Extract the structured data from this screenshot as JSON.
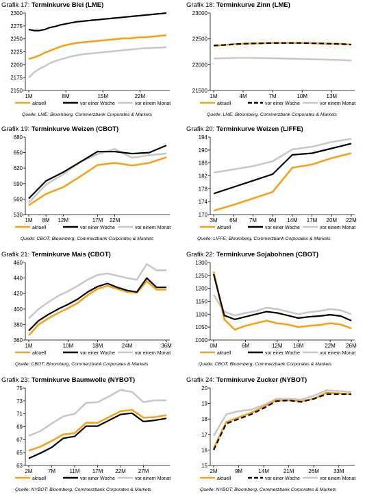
{
  "colors": {
    "aktuell": "#f5a21b",
    "woche": "#000000",
    "monat": "#c8c8c8"
  },
  "charts": [
    {
      "title_prefix": "Grafik 17:",
      "title": "Terminkurve Blei (LME)",
      "source": "Quelle: LME; Bloomberg, Commerzbank Corporates & Markets",
      "chart_data": {
        "type": "line",
        "yticks": [
          "2150",
          "2175",
          "2200",
          "2225",
          "2250",
          "2275",
          "2300"
        ],
        "ylim": [
          2150,
          2300
        ],
        "xticks": [
          "1M",
          "8M",
          "15M",
          "22M"
        ],
        "x_n": 27,
        "xtick_idx": [
          0,
          7,
          14,
          21
        ],
        "series": [
          {
            "name": "aktuell",
            "dash": false,
            "values": [
              2211,
              2214,
              2218,
              2223,
              2227,
              2231,
              2235,
              2238,
              2240,
              2242,
              2243,
              2244,
              2245,
              2246,
              2247,
              2248,
              2249,
              2250,
              2251,
              2251,
              2252,
              2253,
              2253,
              2254,
              2255,
              2256,
              2257
            ]
          },
          {
            "name": "vor einer Woche",
            "dash": false,
            "values": [
              2268,
              2266,
              2266,
              2268,
              2272,
              2274,
              2277,
              2279,
              2281,
              2283,
              2284,
              2285,
              2286,
              2287,
              2288,
              2289,
              2290,
              2291,
              2292,
              2293,
              2294,
              2295,
              2296,
              2297,
              2298,
              2299,
              2300
            ]
          },
          {
            "name": "vor einem Monat",
            "dash": false,
            "values": [
              2175,
              2185,
              2192,
              2197,
              2203,
              2207,
              2210,
              2213,
              2216,
              2218,
              2220,
              2221,
              2222,
              2223,
              2224,
              2225,
              2226,
              2227,
              2228,
              2229,
              2230,
              2231,
              2232,
              2232,
              2233,
              2233,
              2234
            ]
          }
        ]
      }
    },
    {
      "title_prefix": "Grafik 18:",
      "title": "Terminkurve Zinn (LME)",
      "source": "Quelle: LME; Bloomberg, Commerzbank Corporates & Markets",
      "chart_data": {
        "type": "line",
        "yticks": [
          "21500",
          "22000",
          "22500",
          "23000"
        ],
        "ylim": [
          21500,
          23000
        ],
        "xticks": [
          "1M",
          "4M",
          "7M",
          "10M",
          "13M"
        ],
        "x_n": 15,
        "xtick_idx": [
          0,
          3,
          6,
          9,
          12
        ],
        "series": [
          {
            "name": "aktuell",
            "dash": false,
            "values": [
              22370,
              22380,
              22395,
              22405,
              22410,
              22415,
              22420,
              22420,
              22420,
              22420,
              22415,
              22410,
              22405,
              22400,
              22390
            ]
          },
          {
            "name": "vor einer Woche",
            "dash": true,
            "values": [
              22370,
              22380,
              22395,
              22405,
              22410,
              22415,
              22420,
              22420,
              22420,
              22420,
              22415,
              22410,
              22405,
              22400,
              22390
            ]
          },
          {
            "name": "vor einem Monat",
            "dash": false,
            "values": [
              22120,
              22125,
              22130,
              22130,
              22130,
              22128,
              22125,
              22120,
              22115,
              22110,
              22105,
              22100,
              22095,
              22090,
              22080
            ]
          }
        ]
      }
    },
    {
      "title_prefix": "Grafik 19:",
      "title": "Terminkurve Weizen (CBOT)",
      "source": "Quelle: CBOT; Bloomberg, Commerzbank Corporates & Markets",
      "chart_data": {
        "type": "line",
        "yticks": [
          "530",
          "560",
          "590",
          "620",
          "650",
          "680"
        ],
        "ylim": [
          530,
          680
        ],
        "xticks": [
          "1M",
          "8M",
          "12M",
          "17M",
          "22M"
        ],
        "x_n": 9,
        "xtick_idx": [
          0,
          1,
          2,
          4,
          5
        ],
        "series": [
          {
            "name": "aktuell",
            "dash": false,
            "values": [
              548,
              570,
              583,
              604,
              626,
              630,
              625,
              630,
              641
            ]
          },
          {
            "name": "vor einer Woche",
            "dash": false,
            "values": [
              561,
              595,
              612,
              632,
              652,
              652,
              648,
              650,
              664
            ]
          },
          {
            "name": "vor einem Monat",
            "dash": false,
            "values": [
              553,
              588,
              608,
              632,
              647,
              657,
              640,
              645,
              648
            ]
          }
        ]
      }
    },
    {
      "title_prefix": "Grafik 20:",
      "title": "Terminkurve Weizen (LIFFE)",
      "source": "Quelle: LIFFE; Bloomberg, Commerzbank Corporates & Markets",
      "chart_data": {
        "type": "line",
        "yticks": [
          "170",
          "174",
          "178",
          "182",
          "186",
          "190",
          "194"
        ],
        "ylim": [
          170,
          194
        ],
        "xticks": [
          "3M",
          "6M",
          "7M",
          "9M",
          "14M",
          "17M",
          "20M",
          "22M"
        ],
        "x_n": 8,
        "xtick_idx": [
          0,
          1,
          2,
          3,
          4,
          5,
          6,
          7
        ],
        "series": [
          {
            "name": "aktuell",
            "dash": false,
            "values": [
              171.2,
              173.0,
              175.0,
              177.0,
              184.5,
              185.5,
              187.5,
              189.0
            ]
          },
          {
            "name": "vor einer Woche",
            "dash": false,
            "values": [
              176.5,
              178.5,
              180.5,
              182.5,
              188.5,
              189.0,
              190.5,
              192.0
            ]
          },
          {
            "name": "vor einem Monat",
            "dash": false,
            "values": [
              183.0,
              184.0,
              185.0,
              186.5,
              190.2,
              191.0,
              192.5,
              193.5
            ]
          }
        ]
      }
    },
    {
      "title_prefix": "Grafik 21:",
      "title": "Terminkurve Mais (CBOT)",
      "source": "Quelle: CBOT; Bloomberg, Commerzbank Corporates & Markets",
      "chart_data": {
        "type": "line",
        "yticks": [
          "360",
          "380",
          "400",
          "420",
          "440",
          "460"
        ],
        "ylim": [
          360,
          460
        ],
        "xticks": [
          "1M",
          "10M",
          "18M",
          "24M",
          "36M"
        ],
        "x_n": 15,
        "xtick_idx": [
          0,
          4,
          7,
          10,
          14
        ],
        "series": [
          {
            "name": "aktuell",
            "dash": false,
            "values": [
              366,
              380,
              388,
              395,
              401,
              408,
              418,
              426,
              430,
              426,
              422,
              421,
              436,
              425,
              425
            ]
          },
          {
            "name": "vor einer Woche",
            "dash": false,
            "values": [
              372,
              385,
              393,
              400,
              406,
              413,
              422,
              429,
              433,
              428,
              424,
              422,
              440,
              428,
              428
            ]
          },
          {
            "name": "vor einem Monat",
            "dash": false,
            "values": [
              388,
              400,
              409,
              417,
              423,
              430,
              438,
              444,
              446,
              443,
              440,
              438,
              458,
              450,
              450
            ]
          }
        ]
      }
    },
    {
      "title_prefix": "Grafik 22:",
      "title": "Terminkurve Sojabohnen (CBOT)",
      "source": "Quelle: CBOT; Bloomberg, Commerzbank Corporates & Markets",
      "chart_data": {
        "type": "line",
        "yticks": [
          "1000",
          "1050",
          "1100",
          "1150",
          "1200",
          "1250",
          "1300"
        ],
        "ylim": [
          1000,
          1300
        ],
        "xticks": [
          "0M",
          "6M",
          "12M",
          "16M",
          "22M",
          "26M"
        ],
        "x_n": 14,
        "xtick_idx": [
          0,
          3,
          6,
          8,
          11,
          13
        ],
        "series": [
          {
            "name": "aktuell",
            "dash": false,
            "values": [
              1265,
              1080,
              1040,
              1055,
              1065,
              1075,
              1065,
              1060,
              1050,
              1055,
              1058,
              1065,
              1060,
              1045
            ]
          },
          {
            "name": "vor einer Woche",
            "dash": false,
            "values": [
              1255,
              1095,
              1080,
              1090,
              1100,
              1110,
              1105,
              1095,
              1085,
              1090,
              1093,
              1098,
              1093,
              1075
            ]
          },
          {
            "name": "vor einem Monat",
            "dash": false,
            "values": [
              1175,
              1110,
              1095,
              1105,
              1112,
              1125,
              1120,
              1110,
              1100,
              1108,
              1112,
              1120,
              1115,
              1100
            ]
          }
        ]
      }
    },
    {
      "title_prefix": "Grafik 23:",
      "title": "Terminkurve Baumwolle (NYBOT)",
      "source": "Quelle: NYBOT; Bloomberg, Commerzbank Corporates & Markets",
      "chart_data": {
        "type": "line",
        "yticks": [
          "63",
          "65",
          "67",
          "69",
          "71",
          "73",
          "75"
        ],
        "ylim": [
          63,
          75
        ],
        "xticks": [
          "2M",
          "7M",
          "11M",
          "17M",
          "22M",
          "27M"
        ],
        "x_n": 13,
        "xtick_idx": [
          0,
          2,
          4,
          6,
          8,
          10
        ],
        "series": [
          {
            "name": "aktuell",
            "dash": false,
            "values": [
              65.3,
              65.9,
              66.8,
              67.8,
              68.0,
              69.6,
              69.6,
              70.5,
              71.4,
              71.6,
              70.4,
              70.5,
              70.8
            ]
          },
          {
            "name": "vor einer Woche",
            "dash": false,
            "values": [
              64.1,
              64.9,
              65.8,
              67.2,
              67.5,
              69.1,
              69.1,
              70.0,
              70.9,
              71.1,
              69.8,
              70.0,
              70.3
            ]
          },
          {
            "name": "vor einem Monat",
            "dash": false,
            "values": [
              67.6,
              68.3,
              69.5,
              70.6,
              71.0,
              72.7,
              72.8,
              73.7,
              74.7,
              74.4,
              72.8,
              73.1,
              73.1
            ]
          }
        ]
      }
    },
    {
      "title_prefix": "Grafik 24:",
      "title": "Terminkurve Zucker (NYBOT)",
      "source": "Quelle: NYBOT; Bloomberg, Commerzbank Corporates & Markets",
      "chart_data": {
        "type": "line",
        "yticks": [
          "15",
          "16",
          "17",
          "18",
          "19",
          "20"
        ],
        "ylim": [
          15,
          20
        ],
        "xticks": [
          "2M",
          "9M",
          "14M",
          "21M",
          "26M",
          "33M"
        ],
        "x_n": 12,
        "xtick_idx": [
          0,
          2,
          4,
          6,
          8,
          10
        ],
        "series": [
          {
            "name": "aktuell",
            "dash": false,
            "values": [
              16.1,
              17.8,
              18.1,
              18.4,
              18.8,
              19.2,
              19.2,
              19.15,
              19.3,
              19.7,
              19.65,
              19.6
            ]
          },
          {
            "name": "vor einer Woche",
            "dash": true,
            "values": [
              16.0,
              17.7,
              18.0,
              18.3,
              18.7,
              19.15,
              19.2,
              19.1,
              19.3,
              19.6,
              19.6,
              19.6
            ]
          },
          {
            "name": "vor einem Monat",
            "dash": false,
            "values": [
              16.9,
              18.3,
              18.5,
              18.6,
              18.9,
              19.3,
              19.3,
              19.25,
              19.5,
              19.85,
              19.8,
              19.75
            ]
          }
        ]
      }
    }
  ]
}
